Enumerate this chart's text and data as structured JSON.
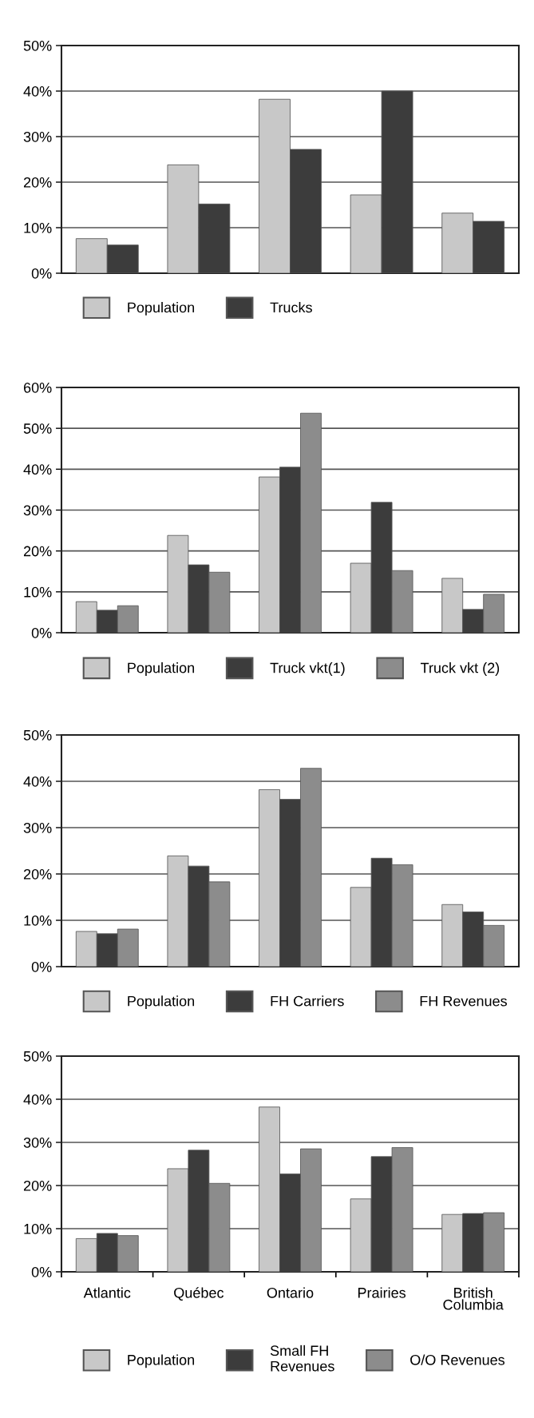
{
  "chart_data": [
    {
      "type": "bar",
      "categories": [
        null,
        null,
        null,
        null,
        null
      ],
      "ylim": [
        0,
        50
      ],
      "yticks": [
        {
          "value": 0,
          "label": "0%"
        },
        {
          "value": 10,
          "label": "10%"
        },
        {
          "value": 20,
          "label": "20%"
        },
        {
          "value": 30,
          "label": "30%"
        },
        {
          "value": 40,
          "label": "40%"
        },
        {
          "value": 50,
          "label": "50%"
        }
      ],
      "grid": "y",
      "legend": "bottom",
      "series": [
        {
          "name": "Population",
          "color": "#c8c8c8",
          "values": [
            7.6,
            23.8,
            38.2,
            17.2,
            13.2
          ]
        },
        {
          "name": "Trucks",
          "color": "#3c3c3c",
          "values": [
            6.2,
            15.2,
            27.2,
            40,
            11.4
          ]
        }
      ]
    },
    {
      "type": "bar",
      "categories": [
        null,
        null,
        null,
        null,
        null
      ],
      "ylim": [
        0,
        60
      ],
      "yticks": [
        {
          "value": 0,
          "label": "0%"
        },
        {
          "value": 10,
          "label": "10%"
        },
        {
          "value": 20,
          "label": "20%"
        },
        {
          "value": 30,
          "label": "30%"
        },
        {
          "value": 40,
          "label": "40%"
        },
        {
          "value": 50,
          "label": "50%"
        },
        {
          "value": 60,
          "label": "60%"
        }
      ],
      "grid": "y",
      "legend": "bottom",
      "series": [
        {
          "name": "Population",
          "color": "#c8c8c8",
          "values": [
            7.6,
            23.8,
            38.1,
            17,
            13.3
          ]
        },
        {
          "name": "Truck vkt(1)",
          "color": "#3c3c3c",
          "values": [
            5.5,
            16.6,
            40.5,
            31.9,
            5.7
          ]
        },
        {
          "name": "Truck vkt (2)",
          "color": "#8c8c8c",
          "values": [
            6.6,
            14.8,
            53.7,
            15.2,
            9.4
          ]
        }
      ]
    },
    {
      "type": "bar",
      "categories": [
        null,
        null,
        null,
        null,
        null
      ],
      "ylim": [
        0,
        50
      ],
      "yticks": [
        {
          "value": 0,
          "label": "0%"
        },
        {
          "value": 10,
          "label": "10%"
        },
        {
          "value": 20,
          "label": "20%"
        },
        {
          "value": 30,
          "label": "30%"
        },
        {
          "value": 40,
          "label": "40%"
        },
        {
          "value": 50,
          "label": "50%"
        }
      ],
      "grid": "y",
      "legend": "bottom",
      "series": [
        {
          "name": "Population",
          "color": "#c8c8c8",
          "values": [
            7.6,
            23.9,
            38.2,
            17.1,
            13.4
          ]
        },
        {
          "name": "FH Carriers",
          "color": "#3c3c3c",
          "values": [
            7.1,
            21.7,
            36.1,
            23.4,
            11.8
          ]
        },
        {
          "name": "FH Revenues",
          "color": "#8c8c8c",
          "values": [
            8.1,
            18.3,
            42.8,
            22,
            8.9
          ]
        }
      ]
    },
    {
      "type": "bar",
      "categories": [
        "Atlantic",
        "Québec",
        "Ontario",
        "Prairies",
        "British\nColumbia"
      ],
      "ylim": [
        0,
        50
      ],
      "yticks": [
        {
          "value": 0,
          "label": "0%"
        },
        {
          "value": 10,
          "label": "10%"
        },
        {
          "value": 20,
          "label": "20%"
        },
        {
          "value": 30,
          "label": "30%"
        },
        {
          "value": 40,
          "label": "40%"
        },
        {
          "value": 50,
          "label": "50%"
        }
      ],
      "grid": "y",
      "legend": "bottom",
      "series": [
        {
          "name": "Population",
          "color": "#c8c8c8",
          "values": [
            7.7,
            23.9,
            38.2,
            16.9,
            13.3
          ]
        },
        {
          "name": "Small FH\nRevenues",
          "color": "#3c3c3c",
          "values": [
            8.9,
            28.2,
            22.7,
            26.7,
            13.5
          ]
        },
        {
          "name": "O/O Revenues",
          "color": "#8c8c8c",
          "values": [
            8.4,
            20.5,
            28.5,
            28.8,
            13.7
          ]
        }
      ]
    }
  ]
}
